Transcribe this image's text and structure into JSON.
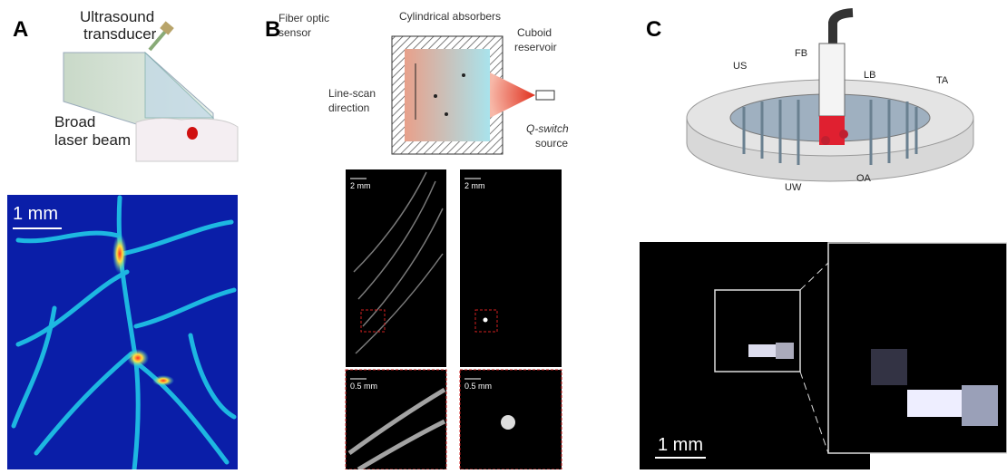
{
  "panel_a": {
    "label": "A",
    "transducer": [
      "Ultrasound",
      "transducer"
    ],
    "beam": [
      "Broad",
      "laser beam"
    ],
    "scale_bar": "1 mm"
  },
  "panel_b": {
    "label": "B",
    "sensor": [
      "Fiber optic",
      "sensor"
    ],
    "absorbers": "Cylindrical absorbers",
    "reservoir": [
      "Cuboid",
      "reservoir"
    ],
    "scan": [
      "Line-scan",
      "direction"
    ],
    "source": [
      "Q-switch",
      "source"
    ],
    "scale_left": "2 mm",
    "scale_right": "2 mm",
    "zoom_left": "0.5 mm",
    "zoom_right": "0.5 mm"
  },
  "panel_c": {
    "label": "C",
    "fb": "FB",
    "us": "US",
    "lb": "LB",
    "ta": "TA",
    "uw": "UW",
    "oa": "OA",
    "scale_bar": "1 mm"
  }
}
